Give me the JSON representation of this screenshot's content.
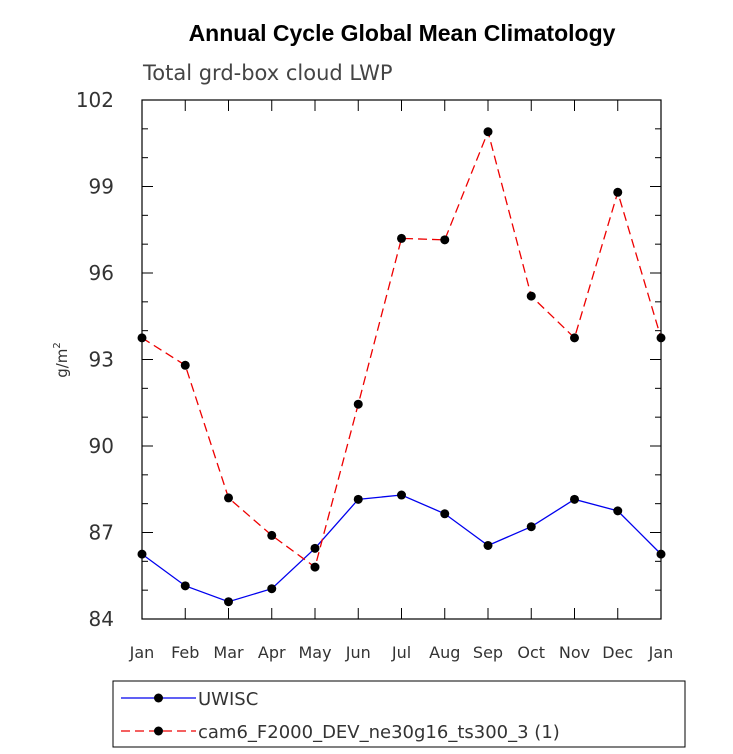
{
  "chart_data": {
    "type": "line",
    "title": "Annual Cycle Global Mean Climatology",
    "subtitle": "Total grd-box cloud LWP",
    "xlabel": "",
    "ylabel": "g/m",
    "ylabel_superscript": "2",
    "categories": [
      "Jan",
      "Feb",
      "Mar",
      "Apr",
      "May",
      "Jun",
      "Jul",
      "Aug",
      "Sep",
      "Oct",
      "Nov",
      "Dec",
      "Jan"
    ],
    "ylim": [
      84,
      102
    ],
    "yticks": [
      "84",
      "87",
      "90",
      "93",
      "96",
      "99",
      "102"
    ],
    "series": [
      {
        "name": "UWISC",
        "color": "#0000ee",
        "dash": "solid",
        "values": [
          86.25,
          85.15,
          84.6,
          85.05,
          86.45,
          88.15,
          88.3,
          87.65,
          86.55,
          87.2,
          88.15,
          87.75,
          86.25
        ]
      },
      {
        "name": "cam6_F2000_DEV_ne30g16_ts300_3 (1)",
        "color": "#ee0000",
        "dash": "dashed",
        "values": [
          93.75,
          92.8,
          88.2,
          86.9,
          85.8,
          91.45,
          97.2,
          97.15,
          100.9,
          95.2,
          93.75,
          98.8,
          93.75
        ]
      }
    ]
  }
}
